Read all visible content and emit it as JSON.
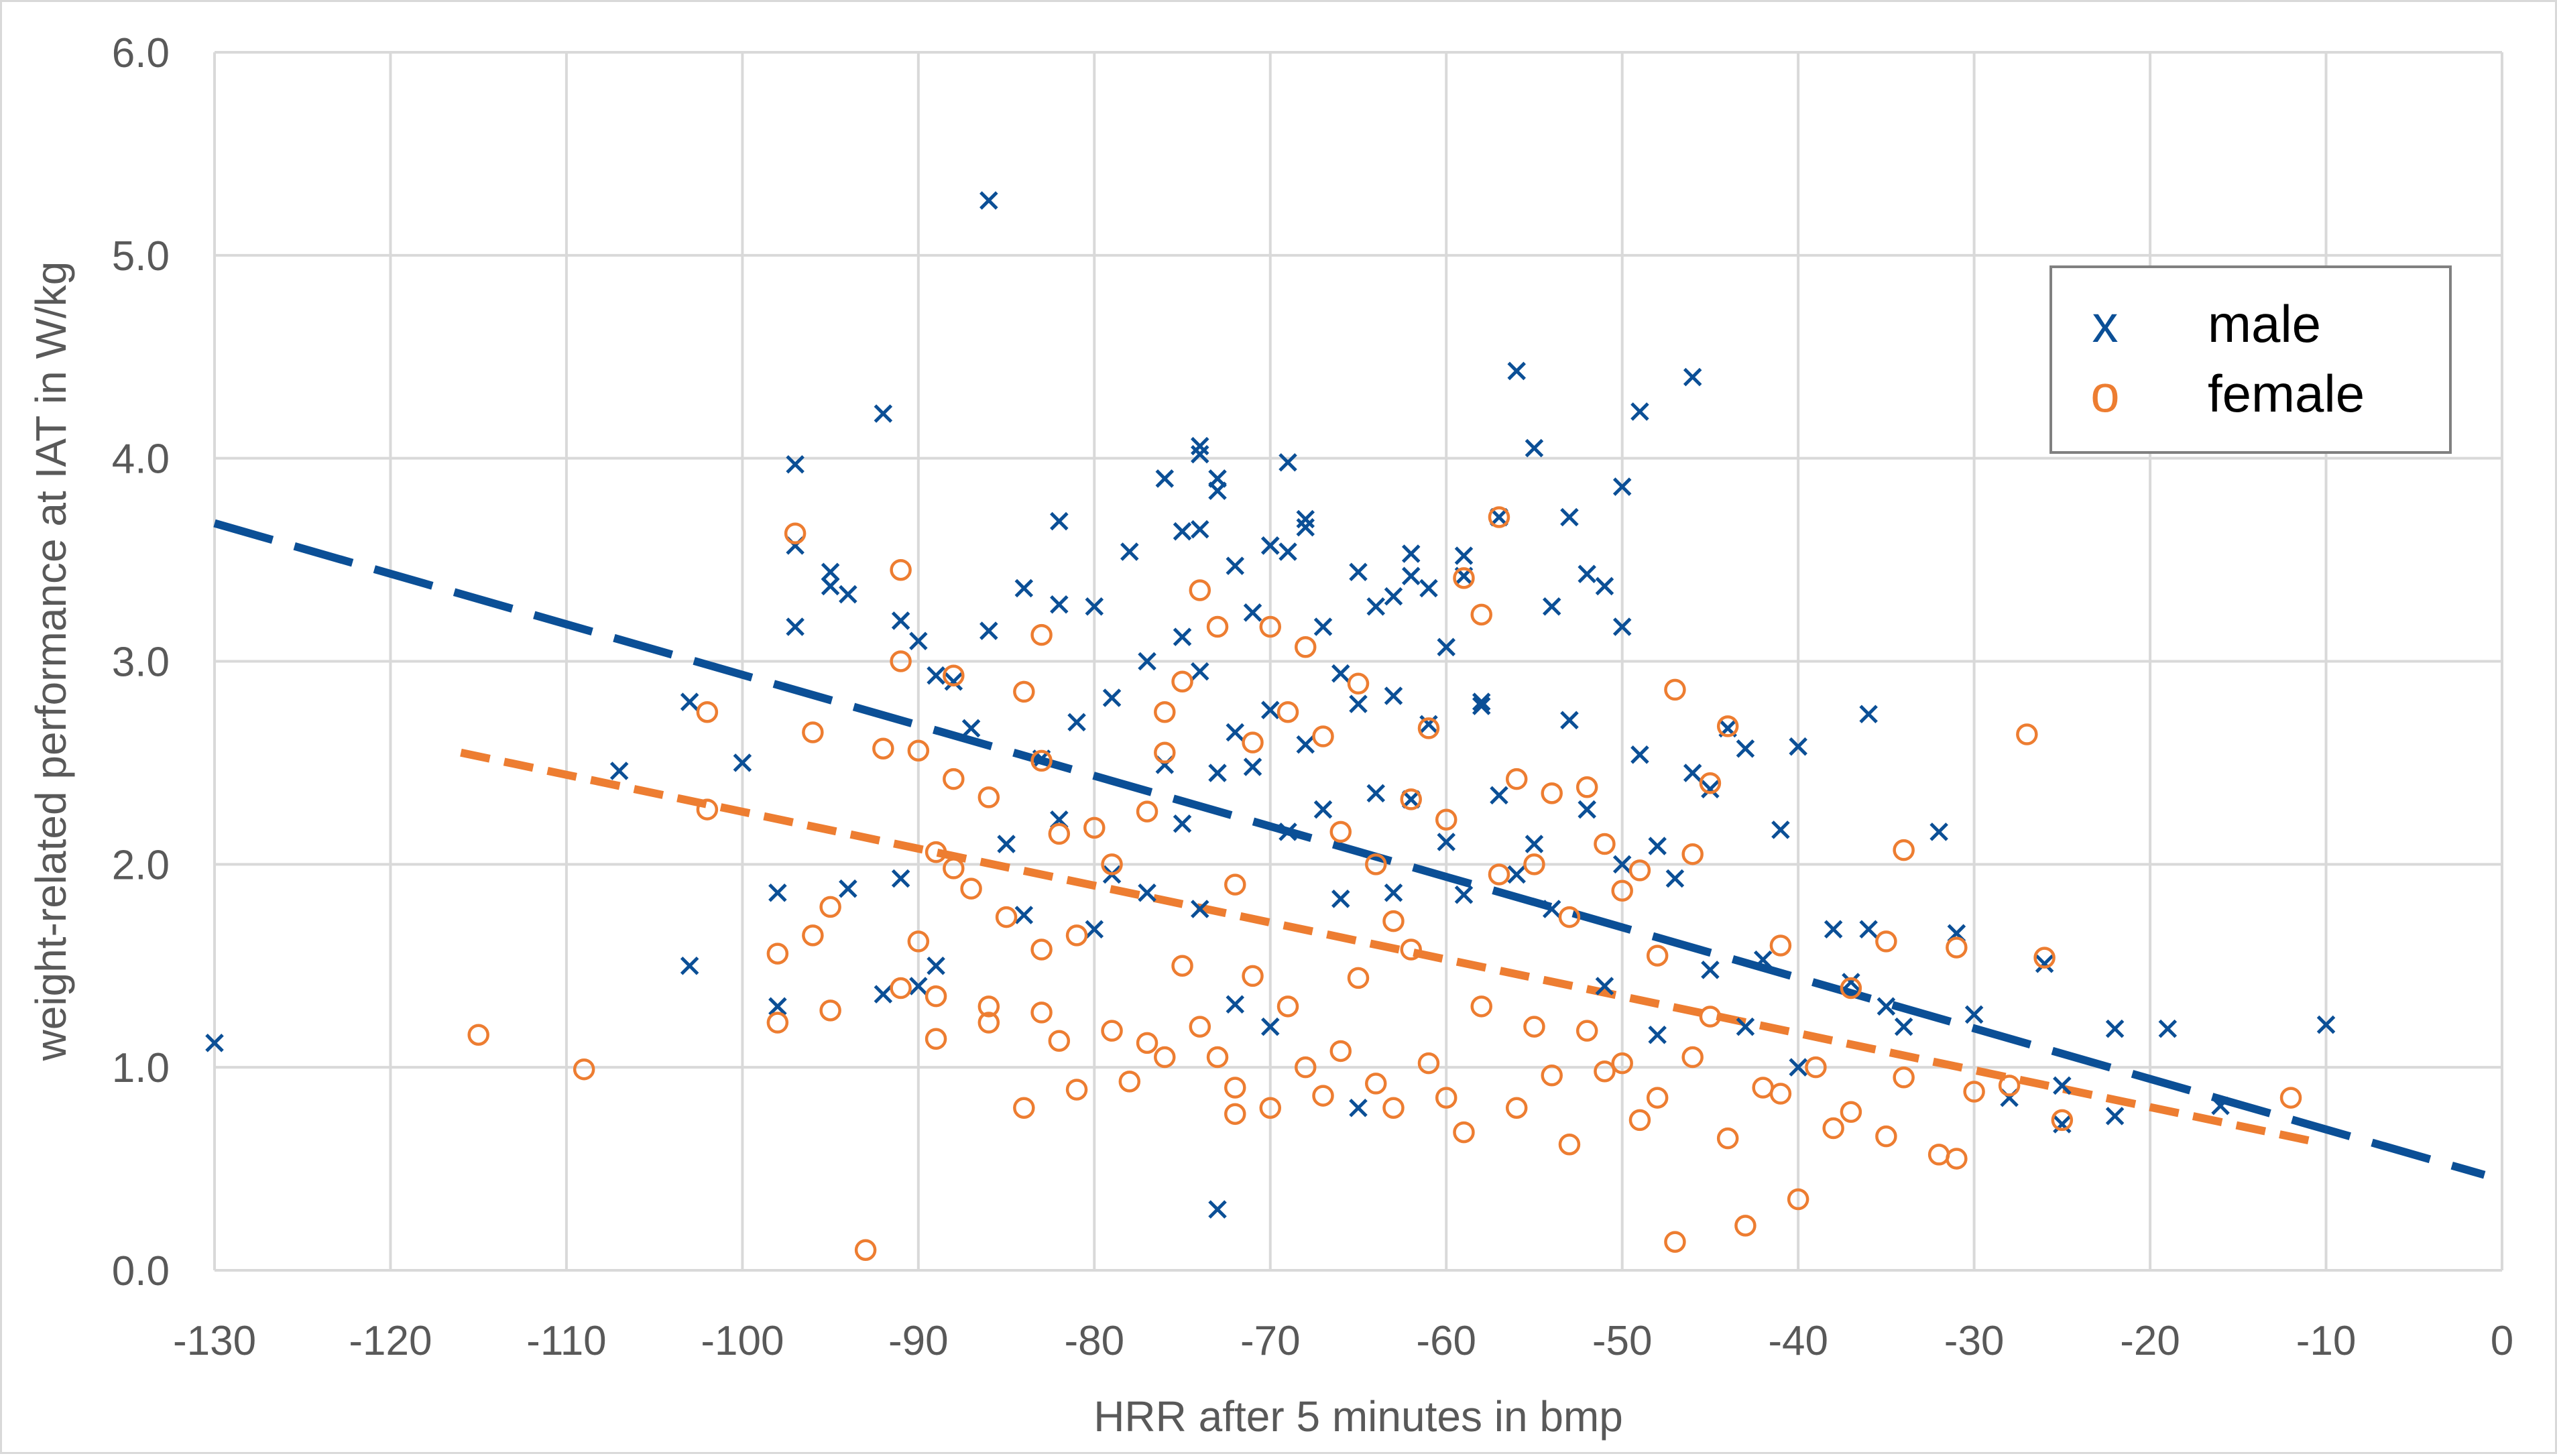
{
  "chart_data": {
    "type": "scatter",
    "title": "",
    "xlabel": "HRR after 5 minutes in bmp",
    "ylabel": "weight-related performance at IAT in W/kg",
    "xlim": [
      -130,
      0
    ],
    "ylim": [
      0,
      6
    ],
    "xticks": [
      -130,
      -120,
      -110,
      -100,
      -90,
      -80,
      -70,
      -60,
      -50,
      -40,
      -30,
      -20,
      -10,
      0
    ],
    "xtick_labels": [
      "-130",
      "-120",
      "-110",
      "-100",
      "-90",
      "-80",
      "-70",
      "-60",
      "-50",
      "-40",
      "-30",
      "-20",
      "-10",
      "0"
    ],
    "yticks": [
      0,
      1,
      2,
      3,
      4,
      5,
      6
    ],
    "ytick_labels": [
      "0.0",
      "1.0",
      "2.0",
      "3.0",
      "4.0",
      "5.0",
      "6.0"
    ],
    "grid": true,
    "legend_position": "top-right",
    "series": [
      {
        "name": "male",
        "marker_symbol": "x",
        "color": "#0B4F96",
        "points": [
          [
            -130,
            1.12
          ],
          [
            -107,
            2.46
          ],
          [
            -103,
            2.8
          ],
          [
            -103,
            1.5
          ],
          [
            -100,
            2.5
          ],
          [
            -98,
            1.86
          ],
          [
            -98,
            1.3
          ],
          [
            -97,
            3.97
          ],
          [
            -97,
            3.57
          ],
          [
            -97,
            3.17
          ],
          [
            -95,
            3.44
          ],
          [
            -95,
            3.37
          ],
          [
            -94,
            3.33
          ],
          [
            -94,
            1.88
          ],
          [
            -92,
            4.22
          ],
          [
            -92,
            1.36
          ],
          [
            -91,
            3.2
          ],
          [
            -91,
            1.93
          ],
          [
            -90,
            3.1
          ],
          [
            -90,
            1.4
          ],
          [
            -89,
            2.93
          ],
          [
            -89,
            1.5
          ],
          [
            -88,
            2.9
          ],
          [
            -87,
            2.67
          ],
          [
            -86,
            5.27
          ],
          [
            -86,
            3.15
          ],
          [
            -85,
            2.1
          ],
          [
            -84,
            3.36
          ],
          [
            -84,
            1.75
          ],
          [
            -83,
            2.52
          ],
          [
            -82,
            3.69
          ],
          [
            -82,
            3.28
          ],
          [
            -82,
            2.22
          ],
          [
            -81,
            2.7
          ],
          [
            -80,
            3.27
          ],
          [
            -80,
            1.68
          ],
          [
            -79,
            2.82
          ],
          [
            -79,
            1.95
          ],
          [
            -78,
            3.54
          ],
          [
            -77,
            3.0
          ],
          [
            -77,
            1.86
          ],
          [
            -76,
            3.9
          ],
          [
            -76,
            2.49
          ],
          [
            -75,
            3.64
          ],
          [
            -75,
            3.12
          ],
          [
            -75,
            2.2
          ],
          [
            -74,
            4.06
          ],
          [
            -74,
            4.02
          ],
          [
            -74,
            3.65
          ],
          [
            -74,
            2.95
          ],
          [
            -74,
            1.78
          ],
          [
            -73,
            3.9
          ],
          [
            -73,
            3.84
          ],
          [
            -73,
            2.45
          ],
          [
            -73,
            0.3
          ],
          [
            -72,
            3.47
          ],
          [
            -72,
            2.65
          ],
          [
            -72,
            1.31
          ],
          [
            -71,
            3.24
          ],
          [
            -71,
            2.48
          ],
          [
            -70,
            3.57
          ],
          [
            -70,
            3.57
          ],
          [
            -70,
            2.76
          ],
          [
            -70,
            1.2
          ],
          [
            -69,
            3.98
          ],
          [
            -69,
            3.54
          ],
          [
            -69,
            2.16
          ],
          [
            -68,
            3.7
          ],
          [
            -68,
            3.66
          ],
          [
            -68,
            2.59
          ],
          [
            -67,
            3.17
          ],
          [
            -67,
            2.27
          ],
          [
            -66,
            2.94
          ],
          [
            -66,
            1.83
          ],
          [
            -65,
            3.44
          ],
          [
            -65,
            2.79
          ],
          [
            -65,
            0.8
          ],
          [
            -64,
            3.27
          ],
          [
            -64,
            2.35
          ],
          [
            -63,
            3.32
          ],
          [
            -63,
            2.83
          ],
          [
            -63,
            1.86
          ],
          [
            -62,
            3.53
          ],
          [
            -62,
            3.42
          ],
          [
            -62,
            2.32
          ],
          [
            -61,
            3.36
          ],
          [
            -61,
            2.69
          ],
          [
            -60,
            3.07
          ],
          [
            -60,
            2.11
          ],
          [
            -59,
            3.52
          ],
          [
            -59,
            3.42
          ],
          [
            -59,
            1.85
          ],
          [
            -58,
            2.8
          ],
          [
            -58,
            2.78
          ],
          [
            -57,
            3.71
          ],
          [
            -57,
            2.34
          ],
          [
            -56,
            4.43
          ],
          [
            -56,
            1.95
          ],
          [
            -55,
            4.05
          ],
          [
            -55,
            2.1
          ],
          [
            -54,
            3.27
          ],
          [
            -54,
            1.78
          ],
          [
            -53,
            3.71
          ],
          [
            -53,
            2.71
          ],
          [
            -52,
            3.43
          ],
          [
            -52,
            2.27
          ],
          [
            -51,
            3.37
          ],
          [
            -51,
            1.4
          ],
          [
            -50,
            3.86
          ],
          [
            -50,
            3.17
          ],
          [
            -50,
            2.0
          ],
          [
            -49,
            4.23
          ],
          [
            -49,
            2.54
          ],
          [
            -48,
            2.09
          ],
          [
            -48,
            1.16
          ],
          [
            -47,
            1.93
          ],
          [
            -46,
            4.4
          ],
          [
            -46,
            2.45
          ],
          [
            -45,
            2.37
          ],
          [
            -45,
            1.48
          ],
          [
            -44,
            2.67
          ],
          [
            -43,
            2.57
          ],
          [
            -43,
            1.2
          ],
          [
            -42,
            1.53
          ],
          [
            -41,
            2.17
          ],
          [
            -40,
            2.58
          ],
          [
            -40,
            1.0
          ],
          [
            -38,
            1.68
          ],
          [
            -37,
            1.42
          ],
          [
            -36,
            2.74
          ],
          [
            -36,
            1.68
          ],
          [
            -35,
            1.3
          ],
          [
            -34,
            1.2
          ],
          [
            -32,
            2.16
          ],
          [
            -31,
            1.66
          ],
          [
            -30,
            1.26
          ],
          [
            -28,
            0.85
          ],
          [
            -26,
            1.51
          ],
          [
            -25,
            0.72
          ],
          [
            -25,
            0.91
          ],
          [
            -22,
            1.19
          ],
          [
            -22,
            0.76
          ],
          [
            -19,
            1.19
          ],
          [
            -16,
            0.81
          ],
          [
            -10,
            1.21
          ]
        ]
      },
      {
        "name": "female",
        "marker_symbol": "o",
        "color": "#ED7D31",
        "points": [
          [
            -115,
            1.16
          ],
          [
            -109,
            0.99
          ],
          [
            -102,
            2.75
          ],
          [
            -102,
            2.27
          ],
          [
            -98,
            1.56
          ],
          [
            -98,
            1.22
          ],
          [
            -97,
            3.63
          ],
          [
            -96,
            2.65
          ],
          [
            -96,
            1.65
          ],
          [
            -95,
            1.79
          ],
          [
            -95,
            1.28
          ],
          [
            -92,
            2.57
          ],
          [
            -91,
            3.45
          ],
          [
            -91,
            3.0
          ],
          [
            -91,
            1.39
          ],
          [
            -93,
            0.1
          ],
          [
            -90,
            2.56
          ],
          [
            -90,
            1.62
          ],
          [
            -89,
            2.06
          ],
          [
            -89,
            1.35
          ],
          [
            -89,
            1.14
          ],
          [
            -88,
            2.93
          ],
          [
            -88,
            2.42
          ],
          [
            -88,
            1.98
          ],
          [
            -87,
            1.88
          ],
          [
            -86,
            2.33
          ],
          [
            -86,
            1.3
          ],
          [
            -86,
            1.22
          ],
          [
            -85,
            1.74
          ],
          [
            -84,
            2.85
          ],
          [
            -84,
            0.8
          ],
          [
            -83,
            3.13
          ],
          [
            -83,
            2.51
          ],
          [
            -83,
            1.58
          ],
          [
            -83,
            1.27
          ],
          [
            -82,
            2.15
          ],
          [
            -82,
            1.13
          ],
          [
            -81,
            1.65
          ],
          [
            -81,
            0.89
          ],
          [
            -80,
            2.18
          ],
          [
            -79,
            2.0
          ],
          [
            -79,
            1.18
          ],
          [
            -78,
            0.93
          ],
          [
            -77,
            2.26
          ],
          [
            -77,
            1.12
          ],
          [
            -76,
            2.75
          ],
          [
            -76,
            2.55
          ],
          [
            -76,
            1.05
          ],
          [
            -75,
            2.9
          ],
          [
            -75,
            1.5
          ],
          [
            -74,
            3.35
          ],
          [
            -74,
            1.2
          ],
          [
            -73,
            3.17
          ],
          [
            -73,
            1.05
          ],
          [
            -72,
            1.9
          ],
          [
            -72,
            0.9
          ],
          [
            -72,
            0.77
          ],
          [
            -71,
            2.6
          ],
          [
            -71,
            1.45
          ],
          [
            -70,
            3.17
          ],
          [
            -70,
            0.8
          ],
          [
            -69,
            2.75
          ],
          [
            -69,
            1.3
          ],
          [
            -68,
            3.07
          ],
          [
            -68,
            1.0
          ],
          [
            -67,
            2.63
          ],
          [
            -67,
            0.86
          ],
          [
            -66,
            2.16
          ],
          [
            -66,
            1.08
          ],
          [
            -65,
            2.89
          ],
          [
            -65,
            1.44
          ],
          [
            -64,
            2.0
          ],
          [
            -64,
            0.92
          ],
          [
            -63,
            1.72
          ],
          [
            -63,
            0.8
          ],
          [
            -62,
            2.32
          ],
          [
            -62,
            1.58
          ],
          [
            -61,
            2.67
          ],
          [
            -61,
            1.02
          ],
          [
            -60,
            2.22
          ],
          [
            -60,
            0.85
          ],
          [
            -59,
            3.41
          ],
          [
            -59,
            0.68
          ],
          [
            -58,
            3.23
          ],
          [
            -58,
            1.3
          ],
          [
            -57,
            3.71
          ],
          [
            -57,
            1.95
          ],
          [
            -56,
            2.42
          ],
          [
            -56,
            0.8
          ],
          [
            -55,
            2.0
          ],
          [
            -55,
            1.2
          ],
          [
            -54,
            2.35
          ],
          [
            -54,
            0.96
          ],
          [
            -53,
            1.74
          ],
          [
            -53,
            0.62
          ],
          [
            -52,
            2.38
          ],
          [
            -52,
            1.18
          ],
          [
            -51,
            2.1
          ],
          [
            -51,
            0.98
          ],
          [
            -50,
            1.87
          ],
          [
            -50,
            1.02
          ],
          [
            -49,
            1.97
          ],
          [
            -49,
            0.74
          ],
          [
            -48,
            1.55
          ],
          [
            -48,
            0.85
          ],
          [
            -47,
            2.86
          ],
          [
            -47,
            0.14
          ],
          [
            -46,
            2.05
          ],
          [
            -46,
            1.05
          ],
          [
            -45,
            2.4
          ],
          [
            -45,
            1.25
          ],
          [
            -44,
            2.68
          ],
          [
            -44,
            0.65
          ],
          [
            -43,
            0.22
          ],
          [
            -42,
            0.9
          ],
          [
            -41,
            1.6
          ],
          [
            -41,
            0.87
          ],
          [
            -40,
            0.35
          ],
          [
            -39,
            1.0
          ],
          [
            -38,
            0.7
          ],
          [
            -37,
            1.39
          ],
          [
            -37,
            0.78
          ],
          [
            -35,
            1.62
          ],
          [
            -35,
            0.66
          ],
          [
            -34,
            2.07
          ],
          [
            -34,
            0.95
          ],
          [
            -32,
            0.57
          ],
          [
            -31,
            1.59
          ],
          [
            -31,
            0.55
          ],
          [
            -30,
            0.88
          ],
          [
            -28,
            0.91
          ],
          [
            -27,
            2.64
          ],
          [
            -26,
            1.54
          ],
          [
            -25,
            0.74
          ],
          [
            -12,
            0.85
          ]
        ]
      }
    ],
    "trendlines": [
      {
        "name": "male trend",
        "color": "#0B4F96",
        "style": "long-dash",
        "x": [
          -130,
          -1
        ],
        "y": [
          3.68,
          0.47
        ]
      },
      {
        "name": "female trend",
        "color": "#ED7D31",
        "style": "dash",
        "x": [
          -116,
          -11
        ],
        "y": [
          2.55,
          0.64
        ]
      }
    ],
    "legend": [
      {
        "symbol": "x",
        "label": "male",
        "color": "#0B4F96"
      },
      {
        "symbol": "o",
        "label": "female",
        "color": "#ED7D31"
      }
    ]
  }
}
